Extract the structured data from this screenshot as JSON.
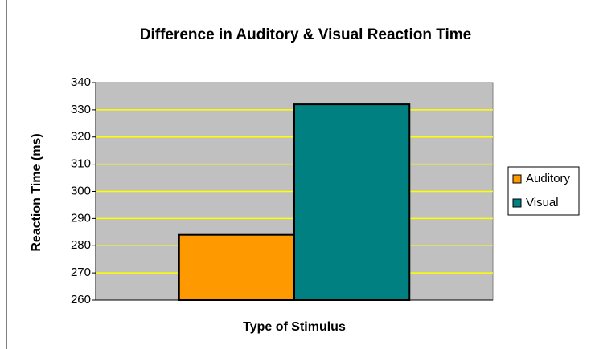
{
  "chart_data": {
    "type": "bar",
    "title": "Difference in Auditory & Visual Reaction Time",
    "x_label": "Type of Stimulus",
    "y_label": "Reaction Time (ms)",
    "categories": [
      null
    ],
    "series": [
      {
        "name": "Auditory",
        "color": "#ff9900",
        "values": [
          284
        ]
      },
      {
        "name": "Visual",
        "color": "#008080",
        "values": [
          332
        ]
      }
    ],
    "ylim": [
      260,
      340
    ],
    "yticks": [
      260,
      270,
      280,
      290,
      300,
      310,
      320,
      330,
      340
    ],
    "grid": true,
    "grid_color": "#ffff00",
    "plot_background": "#c0c0c0",
    "legend": "right"
  }
}
